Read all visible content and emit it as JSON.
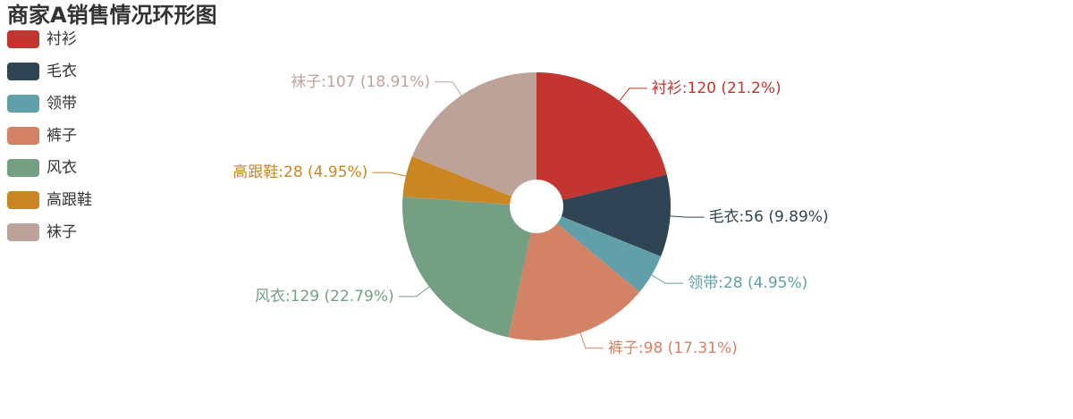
{
  "chart_data": {
    "type": "pie",
    "title": "商家A销售情况环形图",
    "categories": [
      "衬衫",
      "毛衣",
      "领带",
      "裤子",
      "风衣",
      "高跟鞋",
      "袜子"
    ],
    "values": [
      120,
      56,
      28,
      98,
      129,
      28,
      107
    ],
    "value_labels": [
      "衬衫:120 (21.2%)",
      "毛衣:56 (9.89%)",
      "领带:28 (4.95%)",
      "裤子:98 (17.31%)",
      "风衣:129 (22.79%)",
      "高跟鞋:28 (4.95%)",
      "袜子:107 (18.91%)"
    ],
    "colors": [
      "#c23531",
      "#2f4554",
      "#61a0a8",
      "#d48265",
      "#749f83",
      "#ca8622",
      "#bda29a"
    ],
    "legend": "top-left"
  }
}
